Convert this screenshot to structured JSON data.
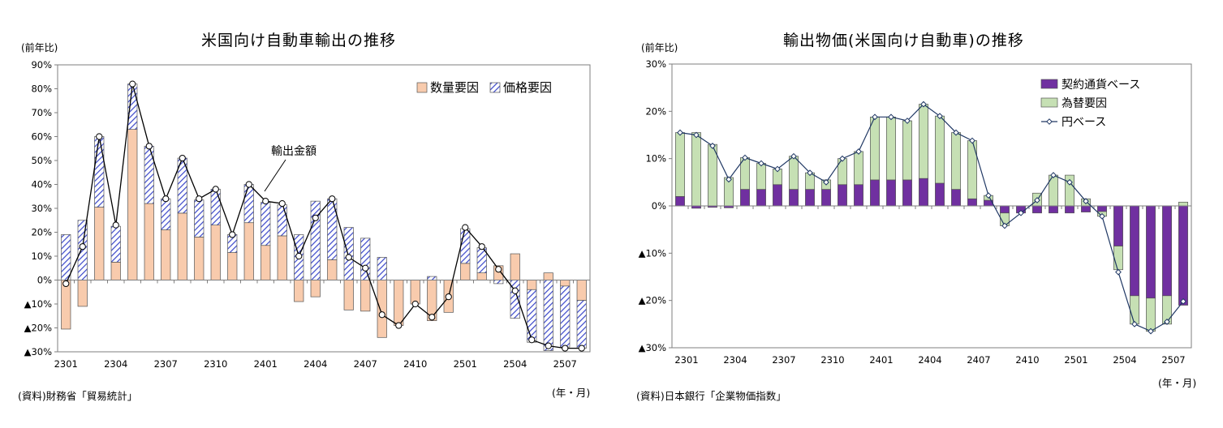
{
  "chart_data": [
    {
      "type": "bar",
      "title": "米国向け自動車輸出の推移",
      "ylabel": "(前年比)",
      "xunit": "(年・月)",
      "source": "(資料)財務省「貿易統計」",
      "ylim": [
        -30,
        90
      ],
      "yticks": [
        90,
        80,
        70,
        60,
        50,
        40,
        30,
        20,
        10,
        0,
        -10,
        -20,
        -30
      ],
      "ytick_labels": [
        "90%",
        "80%",
        "70%",
        "60%",
        "50%",
        "40%",
        "30%",
        "20%",
        "10%",
        "0%",
        "▲10%",
        "▲20%",
        "▲30%"
      ],
      "categories": [
        "2301",
        "2302",
        "2303",
        "2304",
        "2305",
        "2306",
        "2307",
        "2308",
        "2309",
        "2310",
        "2311",
        "2312",
        "2401",
        "2402",
        "2403",
        "2404",
        "2405",
        "2406",
        "2407",
        "2408",
        "2409",
        "2410",
        "2411",
        "2412",
        "2501",
        "2502",
        "2503",
        "2504",
        "2505",
        "2506",
        "2507",
        "2508"
      ],
      "xtick_labels": [
        "2301",
        "2304",
        "2307",
        "2310",
        "2401",
        "2404",
        "2407",
        "2410",
        "2501",
        "2504",
        "2507"
      ],
      "stacked": true,
      "grid": false,
      "legend_position": "top-right",
      "annotation": "輸出金額",
      "series": [
        {
          "name": "数量要因",
          "kind": "bar",
          "color": "#f8cbad",
          "values": [
            -20.5,
            -11,
            30.5,
            7.5,
            63,
            32,
            21,
            28,
            18,
            23,
            11.5,
            24,
            14.5,
            18.5,
            -9,
            -7,
            8.5,
            -12.5,
            -13,
            -24,
            -19,
            -10,
            -17,
            -13.5,
            7,
            3,
            6,
            11,
            -4,
            3,
            -2.5,
            -8.5
          ]
        },
        {
          "name": "価格要因",
          "kind": "bar",
          "color": "#3f4fd1",
          "values": [
            19,
            25,
            29.5,
            15,
            19,
            24,
            13,
            23,
            15.5,
            15,
            7.5,
            16,
            18,
            13,
            19,
            33,
            25.5,
            22,
            17.5,
            9.5,
            0,
            0,
            1.5,
            0,
            14.5,
            10.5,
            -1.5,
            -16,
            -22,
            -29.5,
            -25.5,
            -20
          ]
        },
        {
          "name": "輸出金額",
          "kind": "line",
          "color": "#000000",
          "values": [
            -1.5,
            14,
            60,
            23,
            82,
            56,
            34,
            51,
            34,
            38,
            19,
            40,
            33,
            32,
            10,
            26,
            34,
            9.5,
            5,
            -14.5,
            -19,
            -10,
            -15.5,
            -7,
            22,
            14,
            4.5,
            -4.5,
            -25,
            -27.5,
            -28.5,
            -28.5
          ]
        }
      ]
    },
    {
      "type": "bar",
      "title": "輸出物価(米国向け自動車)の推移",
      "ylabel": "(前年比)",
      "xunit": "(年・月)",
      "source": "(資料)日本銀行「企業物価指数」",
      "ylim": [
        -30,
        30
      ],
      "yticks": [
        30,
        20,
        10,
        0,
        -10,
        -20,
        -30
      ],
      "ytick_labels": [
        "30%",
        "20%",
        "10%",
        "0%",
        "▲10%",
        "▲20%",
        "▲30%"
      ],
      "categories": [
        "2301",
        "2302",
        "2303",
        "2304",
        "2305",
        "2306",
        "2307",
        "2308",
        "2309",
        "2310",
        "2311",
        "2312",
        "2401",
        "2402",
        "2403",
        "2404",
        "2405",
        "2406",
        "2407",
        "2408",
        "2409",
        "2410",
        "2411",
        "2412",
        "2501",
        "2502",
        "2503",
        "2504",
        "2505",
        "2506",
        "2507",
        "2508"
      ],
      "xtick_labels": [
        "2301",
        "2304",
        "2307",
        "2310",
        "2401",
        "2404",
        "2407",
        "2410",
        "2501",
        "2504",
        "2507"
      ],
      "stacked": true,
      "grid": false,
      "legend_position": "top-right",
      "series": [
        {
          "name": "契約通貨ベース",
          "kind": "bar",
          "color": "#7030a0",
          "values": [
            2,
            -0.5,
            -0.3,
            -0.4,
            3.5,
            3.5,
            4.5,
            3.5,
            3.5,
            3.5,
            4.5,
            4.5,
            5.5,
            5.5,
            5.5,
            5.8,
            4.8,
            3.5,
            1.5,
            1.2,
            -1.5,
            -1.5,
            -1.5,
            -1.5,
            -1.5,
            -1.3,
            -1.2,
            -8.5,
            -19,
            -19.5,
            -19,
            -21
          ]
        },
        {
          "name": "為替要因",
          "kind": "bar",
          "color": "#c6e0b4",
          "values": [
            13.5,
            15.5,
            13,
            6,
            6.7,
            5.5,
            3.3,
            7,
            3.5,
            2,
            5.5,
            7,
            13.3,
            13.3,
            12.5,
            15.7,
            14.2,
            12,
            12.3,
            1,
            -2.7,
            0,
            2.7,
            6.5,
            6.5,
            1.5,
            -1,
            -5,
            -6,
            -7,
            -6,
            0.8
          ]
        },
        {
          "name": "円ベース",
          "kind": "line",
          "color": "#203864",
          "values": [
            15.5,
            15,
            12.7,
            5.6,
            10.2,
            9,
            7.8,
            10.5,
            7,
            5,
            10,
            11.5,
            18.8,
            18.8,
            18,
            21.5,
            19,
            15.5,
            13.8,
            2.2,
            -4.2,
            -1.5,
            1.2,
            6.5,
            5,
            1,
            -2.2,
            -14,
            -25,
            -26.5,
            -24.5,
            -20.2
          ]
        }
      ]
    }
  ]
}
